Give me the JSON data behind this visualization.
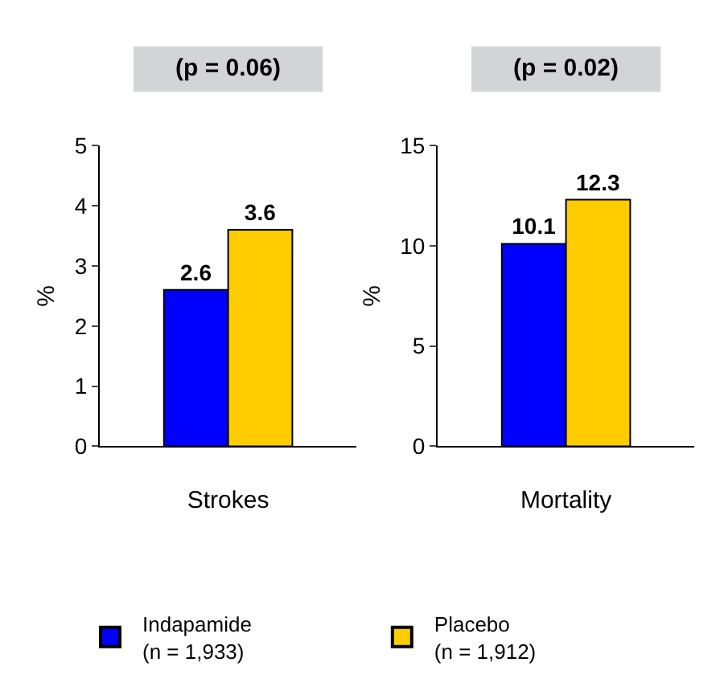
{
  "chart_data": [
    {
      "type": "bar",
      "title": "(p = 0.06)",
      "xlabel": "Strokes",
      "ylabel": "%",
      "categories": [
        null
      ],
      "ylim": [
        0,
        5
      ],
      "yticks": [
        0,
        1,
        2,
        3,
        4,
        5
      ],
      "data_labels": true,
      "legend": "bottom",
      "series": [
        {
          "name": "Indapamide\n(n = 1,933)",
          "color": "#0000ff",
          "values": [
            2.6
          ]
        },
        {
          "name": "Placebo\n(n = 1,912)",
          "color": "#ffcc00",
          "values": [
            3.6
          ]
        }
      ]
    },
    {
      "type": "bar",
      "title": "(p = 0.02)",
      "xlabel": "Mortality",
      "ylabel": "%",
      "categories": [
        null
      ],
      "ylim": [
        0,
        15
      ],
      "yticks": [
        0,
        5,
        10,
        15
      ],
      "data_labels": true,
      "legend": "bottom",
      "series": [
        {
          "name": "Indapamide\n(n = 1,933)",
          "color": "#0000ff",
          "values": [
            10.1
          ]
        },
        {
          "name": "Placebo\n(n = 1,912)",
          "color": "#ffcc00",
          "values": [
            12.3
          ]
        }
      ]
    }
  ]
}
